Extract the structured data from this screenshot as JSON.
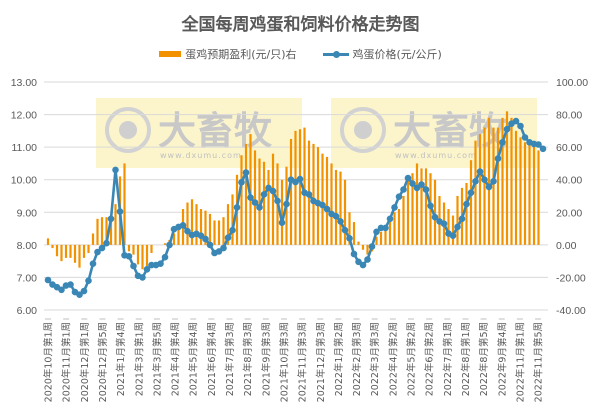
{
  "title": "全国每周鸡蛋和饲料价格走势图",
  "legend": {
    "bar_label": "蛋鸡预期盈利(元/只)右",
    "line_label": "鸡蛋价格(元/公斤)"
  },
  "watermark": {
    "text": "大畜牧",
    "url": "www.dxumu.com"
  },
  "colors": {
    "bar": "#F39200",
    "line": "#3A87B5",
    "grid": "#D9D9D9",
    "watermark_bg": "#FBF3C2"
  },
  "chart_data": {
    "type": "bar+line",
    "title": "全国每周鸡蛋和饲料价格走势图",
    "left_axis": {
      "label": "鸡蛋价格(元/公斤)",
      "ylim": [
        6.0,
        13.0
      ],
      "ticks": [
        "6.00",
        "7.00",
        "8.00",
        "9.00",
        "10.00",
        "11.00",
        "12.00",
        "13.00"
      ]
    },
    "right_axis": {
      "label": "蛋鸡预期盈利(元/只)",
      "ylim": [
        -40,
        100
      ],
      "ticks": [
        "-40.00",
        "-20.00",
        "0.00",
        "20.00",
        "40.00",
        "60.00",
        "80.00",
        "100.00"
      ]
    },
    "x_tick_labels": [
      "2020年10月第1周",
      "2020年11月第1周",
      "2020年12月第1周",
      "2020年12月第5周",
      "2021年1月第4周",
      "2021年3月第1周",
      "2021年3月第5周",
      "2021年4月第4周",
      "2021年5月第4周",
      "2021年6月第4周",
      "2021年7月第3周",
      "2021年8月第3周",
      "2021年9月第3周",
      "2021年10月第3周",
      "2021年11月第3周",
      "2021年12月第3周",
      "2022年1月第2周",
      "2022年2月第3周",
      "2022年3月第3周",
      "2022年4月第2周",
      "2022年5月第2周",
      "2022年6月第2周",
      "2022年7月第1周",
      "2022年8月第1周",
      "2022年8月第5周",
      "2022年9月第4周",
      "2022年11月第1周",
      "2022年11月第5周"
    ],
    "grid": true,
    "legend_position": "top",
    "series": [
      {
        "name": "蛋鸡预期盈利(元/只)右",
        "type": "bar",
        "axis": "right",
        "values": [
          4,
          -2,
          -7,
          -10,
          -8,
          -8,
          -11,
          -14,
          -8,
          -5,
          7,
          16,
          17,
          17,
          18,
          25,
          42,
          50,
          -4,
          -6,
          -12,
          -15,
          -17,
          -5,
          0,
          0,
          1,
          3,
          7,
          11,
          22,
          26,
          28,
          25,
          22,
          21,
          19,
          15,
          15,
          17,
          25,
          31,
          43,
          55,
          62,
          68,
          58,
          53,
          51,
          46,
          56,
          50,
          40,
          48,
          65,
          70,
          71,
          72,
          64,
          62,
          60,
          56,
          54,
          50,
          46,
          45,
          40,
          20,
          14,
          2,
          -3,
          -6,
          -4,
          5,
          8,
          10,
          15,
          20,
          22,
          30,
          40,
          44,
          50,
          47,
          47,
          44,
          40,
          30,
          26,
          22,
          18,
          30,
          35,
          38,
          52,
          64,
          68,
          72,
          78,
          72,
          72,
          78,
          82,
          78,
          70,
          66,
          63,
          63,
          61,
          58
        ]
      },
      {
        "name": "鸡蛋价格(元/公斤)",
        "type": "line",
        "axis": "left",
        "values": [
          6.92,
          6.78,
          6.7,
          6.62,
          6.75,
          6.78,
          6.55,
          6.47,
          6.58,
          6.9,
          7.42,
          7.78,
          7.9,
          8.05,
          8.8,
          10.3,
          9.02,
          7.68,
          7.65,
          7.35,
          7.05,
          7.0,
          7.25,
          7.38,
          7.38,
          7.42,
          7.62,
          8.0,
          8.48,
          8.55,
          8.6,
          8.42,
          8.3,
          8.34,
          8.28,
          8.18,
          8.0,
          7.75,
          7.8,
          7.9,
          8.22,
          8.45,
          9.15,
          9.92,
          10.22,
          9.45,
          9.3,
          9.15,
          9.55,
          9.75,
          9.65,
          9.35,
          8.68,
          9.25,
          10.0,
          9.93,
          10.02,
          9.6,
          9.55,
          9.35,
          9.28,
          9.22,
          9.1,
          8.95,
          8.88,
          8.72,
          8.45,
          8.2,
          7.72,
          7.48,
          7.38,
          7.55,
          7.95,
          8.4,
          8.52,
          8.52,
          8.8,
          9.15,
          9.48,
          9.7,
          10.05,
          9.88,
          9.75,
          9.85,
          9.7,
          9.2,
          8.85,
          8.72,
          8.65,
          8.35,
          8.28,
          8.55,
          8.8,
          9.25,
          9.6,
          9.95,
          10.25,
          10.0,
          9.78,
          9.95,
          10.65,
          11.15,
          11.55,
          11.72,
          11.8,
          11.65,
          11.3,
          11.15,
          11.1,
          11.08,
          10.95
        ]
      }
    ]
  }
}
